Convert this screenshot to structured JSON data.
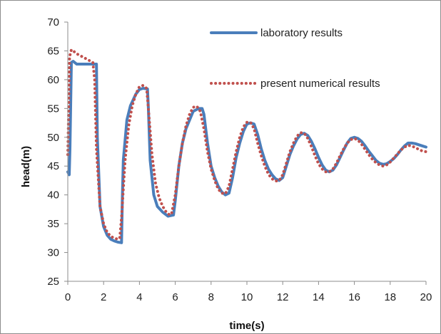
{
  "chart_data": {
    "type": "line",
    "title": "",
    "xlabel": "time(s)",
    "ylabel": "head(m)",
    "xlim": [
      0,
      20
    ],
    "ylim": [
      25,
      70
    ],
    "xticks": [
      0,
      2,
      4,
      6,
      8,
      10,
      12,
      14,
      16,
      18,
      20
    ],
    "yticks": [
      25,
      30,
      35,
      40,
      45,
      50,
      55,
      60,
      65,
      70
    ],
    "grid": false,
    "legend_position": "top-right",
    "series": [
      {
        "name": "laboratory results",
        "color": "#4a7ebb",
        "style": "solid",
        "x": [
          0.0,
          0.08,
          0.12,
          0.2,
          0.3,
          0.5,
          0.8,
          1.2,
          1.6,
          1.65,
          1.8,
          2.0,
          2.2,
          2.4,
          2.6,
          2.8,
          3.0,
          3.05,
          3.1,
          3.3,
          3.5,
          3.8,
          4.0,
          4.2,
          4.45,
          4.5,
          4.6,
          4.8,
          5.0,
          5.3,
          5.6,
          5.9,
          6.0,
          6.2,
          6.4,
          6.6,
          6.8,
          7.0,
          7.3,
          7.5,
          7.6,
          7.8,
          8.0,
          8.2,
          8.4,
          8.6,
          8.8,
          9.0,
          9.2,
          9.4,
          9.6,
          9.8,
          10.0,
          10.2,
          10.4,
          10.6,
          10.8,
          11.0,
          11.2,
          11.4,
          11.6,
          11.8,
          12.0,
          12.2,
          12.4,
          12.6,
          12.8,
          13.0,
          13.2,
          13.4,
          13.6,
          13.8,
          14.0,
          14.2,
          14.4,
          14.6,
          14.8,
          15.0,
          15.2,
          15.4,
          15.6,
          15.8,
          16.0,
          16.2,
          16.4,
          16.6,
          16.8,
          17.0,
          17.2,
          17.4,
          17.6,
          17.8,
          18.0,
          18.2,
          18.4,
          18.6,
          18.8,
          19.0,
          19.2,
          19.4,
          19.6,
          19.8,
          20.0
        ],
        "y": [
          44.0,
          43.5,
          48.0,
          63.0,
          63.2,
          62.7,
          62.7,
          62.7,
          62.7,
          50.0,
          38.0,
          34.5,
          33.0,
          32.3,
          32.0,
          31.8,
          31.7,
          40.0,
          46.0,
          53.0,
          55.5,
          57.5,
          58.3,
          58.5,
          58.4,
          55.0,
          46.0,
          40.0,
          38.0,
          37.0,
          36.3,
          36.5,
          39.0,
          45.0,
          49.0,
          51.5,
          53.0,
          54.5,
          55.0,
          55.0,
          54.0,
          49.0,
          45.0,
          43.0,
          41.5,
          40.5,
          40.0,
          40.3,
          43.0,
          46.5,
          49.0,
          51.0,
          52.3,
          52.5,
          52.3,
          50.5,
          48.0,
          46.0,
          44.5,
          43.5,
          42.8,
          42.5,
          43.0,
          45.0,
          47.0,
          48.5,
          49.7,
          50.5,
          50.7,
          50.3,
          49.3,
          48.0,
          46.5,
          45.2,
          44.3,
          44.0,
          44.3,
          45.2,
          46.5,
          47.8,
          49.0,
          49.8,
          50.0,
          49.8,
          49.3,
          48.5,
          47.6,
          46.8,
          46.0,
          45.5,
          45.3,
          45.4,
          45.8,
          46.3,
          47.0,
          47.8,
          48.5,
          49.0,
          49.0,
          48.9,
          48.7,
          48.5,
          48.3
        ]
      },
      {
        "name": "present numerical results",
        "color": "#c0504d",
        "style": "dotted",
        "x": [
          0.0,
          0.05,
          0.1,
          0.2,
          0.3,
          0.5,
          0.8,
          1.1,
          1.4,
          1.5,
          1.6,
          1.8,
          2.0,
          2.2,
          2.4,
          2.6,
          2.8,
          2.9,
          3.0,
          3.2,
          3.4,
          3.6,
          3.8,
          4.0,
          4.2,
          4.4,
          4.5,
          4.7,
          4.9,
          5.1,
          5.3,
          5.5,
          5.7,
          5.8,
          6.0,
          6.2,
          6.4,
          6.6,
          6.8,
          7.0,
          7.2,
          7.4,
          7.6,
          7.8,
          8.0,
          8.2,
          8.4,
          8.6,
          8.8,
          9.0,
          9.2,
          9.4,
          9.6,
          9.8,
          10.0,
          10.2,
          10.4,
          10.6,
          10.8,
          11.0,
          11.2,
          11.4,
          11.6,
          11.8,
          12.0,
          12.2,
          12.4,
          12.6,
          12.8,
          13.0,
          13.2,
          13.4,
          13.6,
          13.8,
          14.0,
          14.2,
          14.4,
          14.6,
          14.8,
          15.0,
          15.2,
          15.4,
          15.6,
          15.8,
          16.0,
          16.2,
          16.4,
          16.6,
          16.8,
          17.0,
          17.2,
          17.4,
          17.6,
          17.8,
          18.0,
          18.2,
          18.4,
          18.6,
          18.8,
          19.0,
          19.2,
          19.4,
          19.6,
          19.8,
          20.0
        ],
        "y": [
          47.0,
          55.0,
          64.0,
          65.2,
          65.0,
          64.5,
          64.0,
          63.5,
          63.0,
          60.0,
          48.0,
          38.0,
          35.0,
          33.5,
          32.8,
          32.5,
          32.3,
          32.5,
          36.0,
          46.0,
          52.0,
          55.5,
          57.5,
          58.8,
          59.0,
          58.5,
          55.0,
          47.0,
          42.0,
          39.5,
          38.0,
          37.0,
          36.5,
          36.8,
          40.0,
          45.0,
          49.0,
          52.0,
          54.0,
          55.2,
          55.4,
          54.5,
          51.5,
          47.5,
          44.5,
          42.5,
          41.0,
          40.3,
          40.2,
          41.5,
          44.5,
          47.5,
          50.0,
          51.8,
          52.6,
          52.6,
          51.5,
          49.0,
          46.8,
          45.0,
          43.6,
          42.8,
          42.4,
          42.5,
          43.5,
          45.5,
          47.5,
          49.0,
          50.2,
          50.8,
          50.7,
          49.8,
          48.4,
          46.8,
          45.4,
          44.5,
          44.0,
          44.0,
          44.5,
          45.5,
          46.8,
          48.0,
          49.0,
          49.6,
          49.8,
          49.5,
          48.8,
          47.9,
          47.0,
          46.2,
          45.6,
          45.2,
          45.0,
          45.2,
          45.7,
          46.4,
          47.1,
          47.8,
          48.3,
          48.6,
          48.5,
          48.2,
          47.9,
          47.6,
          47.5
        ]
      }
    ]
  }
}
